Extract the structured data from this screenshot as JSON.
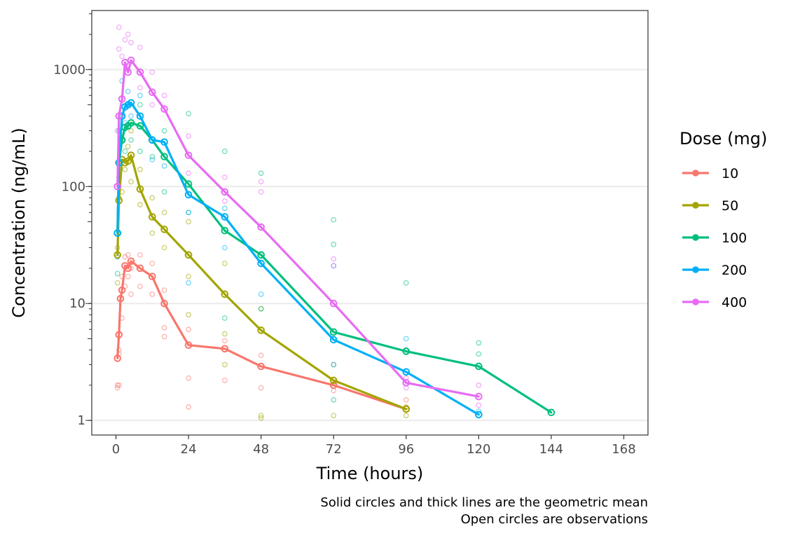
{
  "chart_data": {
    "type": "line",
    "xlabel": "Time (hours)",
    "ylabel": "Concentration (ng/mL)",
    "x_ticks": [
      0,
      24,
      48,
      72,
      96,
      120,
      144,
      168
    ],
    "x_tick_labels": [
      "0",
      "24",
      "48",
      "72",
      "96",
      "120",
      "144",
      "168"
    ],
    "xlim": [
      -8,
      176
    ],
    "y_scale": "log10",
    "y_ticks": [
      1,
      10,
      100,
      1000
    ],
    "y_tick_labels": [
      "1",
      "10",
      "100",
      "1000"
    ],
    "ylim": [
      0.75,
      3200
    ],
    "grid": "horizontal major",
    "caption": [
      "Solid circles and thick lines are the geometric mean",
      "Open circles are observations"
    ],
    "legend": {
      "title": "Dose (mg)",
      "position": "right"
    },
    "series": [
      {
        "name": "10",
        "color": "#F8766D",
        "mean": [
          [
            0.5,
            3.4
          ],
          [
            1,
            5.4
          ],
          [
            1.5,
            11.0
          ],
          [
            2,
            13.0
          ],
          [
            3,
            21.0
          ],
          [
            4,
            20.0
          ],
          [
            5,
            23.0
          ],
          [
            8,
            20.0
          ],
          [
            12,
            17.0
          ],
          [
            16,
            10.0
          ],
          [
            24,
            4.4
          ],
          [
            36,
            4.1
          ],
          [
            48,
            2.9
          ],
          [
            72,
            2.0
          ],
          [
            96,
            1.25
          ]
        ],
        "observations": [
          [
            0.5,
            2.0
          ],
          [
            0.5,
            1.9
          ],
          [
            1,
            3.7
          ],
          [
            1,
            4.0
          ],
          [
            1,
            2.0
          ],
          [
            2,
            17.0
          ],
          [
            2,
            7.5
          ],
          [
            3,
            14.0
          ],
          [
            3,
            25.0
          ],
          [
            4,
            17.0
          ],
          [
            4,
            26.0
          ],
          [
            5,
            12.0
          ],
          [
            5,
            20.0
          ],
          [
            8,
            14.0
          ],
          [
            8,
            26.0
          ],
          [
            12,
            12.0
          ],
          [
            12,
            22.0
          ],
          [
            16,
            6.2
          ],
          [
            16,
            5.2
          ],
          [
            16,
            13.0
          ],
          [
            24,
            6.0
          ],
          [
            24,
            2.3
          ],
          [
            24,
            1.3
          ],
          [
            36,
            2.2
          ],
          [
            36,
            4.8
          ],
          [
            48,
            3.6
          ],
          [
            48,
            1.9
          ],
          [
            72,
            1.8
          ],
          [
            96,
            1.5
          ]
        ]
      },
      {
        "name": "50",
        "color": "#A3A500",
        "mean": [
          [
            0.5,
            26.0
          ],
          [
            1,
            76.0
          ],
          [
            2,
            170.0
          ],
          [
            3,
            160.0
          ],
          [
            4,
            165.0
          ],
          [
            5,
            185.0
          ],
          [
            8,
            95.0
          ],
          [
            12,
            55.0
          ],
          [
            16,
            43.0
          ],
          [
            24,
            26.0
          ],
          [
            36,
            12.0
          ],
          [
            48,
            5.9
          ],
          [
            72,
            2.2
          ],
          [
            96,
            1.25
          ]
        ],
        "observations": [
          [
            0.5,
            30.0
          ],
          [
            0.5,
            15.0
          ],
          [
            1,
            40.0
          ],
          [
            1,
            120.0
          ],
          [
            2,
            250.0
          ],
          [
            2,
            90.0
          ],
          [
            3,
            140.0
          ],
          [
            4,
            220.0
          ],
          [
            5,
            110.0
          ],
          [
            5,
            300.0
          ],
          [
            8,
            70.0
          ],
          [
            8,
            140.0
          ],
          [
            12,
            40.0
          ],
          [
            12,
            80.0
          ],
          [
            16,
            30.0
          ],
          [
            16,
            60.0
          ],
          [
            24,
            17.0
          ],
          [
            24,
            50.0
          ],
          [
            24,
            8.0
          ],
          [
            36,
            22.0
          ],
          [
            36,
            3.0
          ],
          [
            36,
            5.5
          ],
          [
            48,
            9.0
          ],
          [
            48,
            1.1
          ],
          [
            48,
            1.05
          ],
          [
            72,
            3.0
          ],
          [
            72,
            1.1
          ],
          [
            96,
            1.1
          ],
          [
            96,
            1.3
          ]
        ]
      },
      {
        "name": "100",
        "color": "#00BF7D",
        "mean": [
          [
            0.5,
            40.0
          ],
          [
            1,
            160.0
          ],
          [
            2,
            250.0
          ],
          [
            3,
            320.0
          ],
          [
            4,
            330.0
          ],
          [
            5,
            350.0
          ],
          [
            8,
            330.0
          ],
          [
            12,
            250.0
          ],
          [
            16,
            180.0
          ],
          [
            24,
            105.0
          ],
          [
            36,
            42.0
          ],
          [
            48,
            26.0
          ],
          [
            72,
            5.7
          ],
          [
            96,
            3.9
          ],
          [
            120,
            2.9
          ],
          [
            144,
            1.17
          ]
        ],
        "observations": [
          [
            0.5,
            18.0
          ],
          [
            1,
            80.0
          ],
          [
            2,
            400.0
          ],
          [
            3,
            200.0
          ],
          [
            4,
            500.0
          ],
          [
            5,
            250.0
          ],
          [
            8,
            200.0
          ],
          [
            8,
            500.0
          ],
          [
            12,
            180.0
          ],
          [
            16,
            90.0
          ],
          [
            16,
            300.0
          ],
          [
            24,
            420.0
          ],
          [
            24,
            60.0
          ],
          [
            36,
            200.0
          ],
          [
            36,
            7.5
          ],
          [
            48,
            130.0
          ],
          [
            48,
            9.0
          ],
          [
            72,
            52.0
          ],
          [
            72,
            32.0
          ],
          [
            72,
            1.5
          ],
          [
            96,
            15.0
          ],
          [
            96,
            4.0
          ],
          [
            120,
            4.6
          ],
          [
            120,
            3.7
          ]
        ]
      },
      {
        "name": "200",
        "color": "#00B0F6",
        "mean": [
          [
            0.5,
            40.0
          ],
          [
            1,
            160.0
          ],
          [
            2,
            400.0
          ],
          [
            3,
            480.0
          ],
          [
            4,
            500.0
          ],
          [
            5,
            520.0
          ],
          [
            8,
            400.0
          ],
          [
            12,
            250.0
          ],
          [
            16,
            240.0
          ],
          [
            24,
            85.0
          ],
          [
            36,
            55.0
          ],
          [
            48,
            22.0
          ],
          [
            72,
            4.9
          ],
          [
            96,
            2.6
          ],
          [
            120,
            1.12
          ]
        ],
        "observations": [
          [
            0.5,
            25.0
          ],
          [
            1,
            300.0
          ],
          [
            2,
            800.0
          ],
          [
            3,
            350.0
          ],
          [
            4,
            650.0
          ],
          [
            5,
            400.0
          ],
          [
            8,
            600.0
          ],
          [
            12,
            170.0
          ],
          [
            16,
            150.0
          ],
          [
            24,
            15.0
          ],
          [
            24,
            60.0
          ],
          [
            36,
            30.0
          ],
          [
            36,
            65.0
          ],
          [
            48,
            12.0
          ],
          [
            72,
            21.0
          ],
          [
            72,
            3.0
          ],
          [
            96,
            5.0
          ],
          [
            120,
            1.2
          ]
        ]
      },
      {
        "name": "400",
        "color": "#E76BF3",
        "mean": [
          [
            0.5,
            100.0
          ],
          [
            1,
            400.0
          ],
          [
            2,
            560.0
          ],
          [
            3,
            1150.0
          ],
          [
            4,
            950.0
          ],
          [
            5,
            1200.0
          ],
          [
            8,
            950.0
          ],
          [
            12,
            640.0
          ],
          [
            16,
            460.0
          ],
          [
            24,
            185.0
          ],
          [
            36,
            90.0
          ],
          [
            48,
            45.0
          ],
          [
            72,
            10.0
          ],
          [
            96,
            2.1
          ],
          [
            120,
            1.6
          ]
        ],
        "observations": [
          [
            0.5,
            300.0
          ],
          [
            1,
            2300.0
          ],
          [
            1,
            1500.0
          ],
          [
            2,
            1300.0
          ],
          [
            3,
            1800.0
          ],
          [
            4,
            2000.0
          ],
          [
            5,
            1700.0
          ],
          [
            8,
            1550.0
          ],
          [
            8,
            700.0
          ],
          [
            12,
            950.0
          ],
          [
            12,
            500.0
          ],
          [
            16,
            600.0
          ],
          [
            24,
            270.0
          ],
          [
            24,
            130.0
          ],
          [
            36,
            120.0
          ],
          [
            36,
            75.0
          ],
          [
            48,
            110.0
          ],
          [
            48,
            90.0
          ],
          [
            72,
            24.0
          ],
          [
            72,
            21.0
          ],
          [
            96,
            1.9
          ],
          [
            96,
            2.3
          ],
          [
            120,
            2.0
          ],
          [
            120,
            1.35
          ]
        ]
      }
    ]
  }
}
